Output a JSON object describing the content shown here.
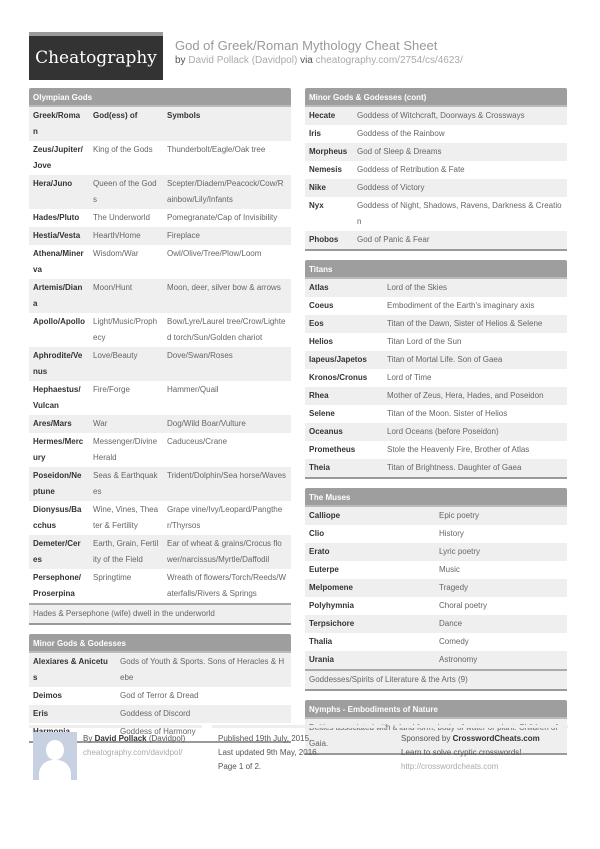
{
  "header": {
    "logo": "Cheatography",
    "title": "God of Greek/Roman Mythology Cheat Sheet",
    "by": "by",
    "author": "David Pollack (Davidpol)",
    "via": "via",
    "url": "cheatography.com/2754/cs/4623/"
  },
  "olympian": {
    "title": "Olympian Gods",
    "columns": [
      "Greek/Roman",
      "God(ess) of",
      "Symbols"
    ],
    "rows": [
      [
        "Zeus/Jupiter/Jove",
        "King of the Gods",
        "Thunderbolt/Eagle/Oak tree"
      ],
      [
        "Hera/Juno",
        "Queen of the Gods",
        "Scepter/Diadem/Peacock/Cow/Rainbow/Lily/Infants"
      ],
      [
        "Hades/Pluto",
        "The Underworld",
        "Pomegranate/Cap of Invisibility"
      ],
      [
        "Hestia/Vesta",
        "Hearth/Home",
        "Fireplace"
      ],
      [
        "Athena/Minerva",
        "Wisdom/War",
        "Owl/Olive/Tree/Plow/Loom"
      ],
      [
        "Artemis/Diana",
        "Moon/Hunt",
        "Moon, deer, silver bow & arrows"
      ],
      [
        "Apollo/Apollo",
        "Light/Music/Prophecy",
        "Bow/Lyre/Laurel tree/Crow/Lighted torch/Sun/Golden chariot"
      ],
      [
        "Aphrodite/Venus",
        "Love/Beauty",
        "Dove/Swan/Roses"
      ],
      [
        "Hephaestus/Vulcan",
        "Fire/Forge",
        "Hammer/Quail"
      ],
      [
        "Ares/Mars",
        "War",
        "Dog/Wild Boar/Vulture"
      ],
      [
        "Hermes/Mercury",
        "Messenger/Divine Herald",
        "Caduceus/Crane"
      ],
      [
        "Poseidon/Neptune",
        "Seas & Earthquakes",
        "Trident/Dolphin/Sea horse/Waves"
      ],
      [
        "Dionysus/Bacchus",
        "Wine, Vines, Theater & Fertility",
        "Grape vine/Ivy/Leopard/Pangther/Thyrsos"
      ],
      [
        "Demeter/Ceres",
        "Earth, Grain, Fertility of the Field",
        "Ear of wheat & grains/Crocus flower/narcissus/Myrtle/Daffodil"
      ],
      [
        "Persephone/Proserpina",
        "Springtime",
        "Wreath of flowers/Torch/Reeds/Waterfalls/Rivers & Springs"
      ]
    ],
    "note": "Hades & Persephone (wife) dwell in the underworld"
  },
  "minor": {
    "title": "Minor Gods & Godesses",
    "rows": [
      [
        "Alexiares & Anicetus",
        "Gods of Youth & Sports. Sons of Heracles & Hebe"
      ],
      [
        "Deimos",
        "God of Terror & Dread"
      ],
      [
        "Eris",
        "Goddess of Discord"
      ],
      [
        "Harmonia",
        "Goddess of Harmony"
      ]
    ]
  },
  "minor_cont": {
    "title": "Minor Gods & Godesses (cont)",
    "rows": [
      [
        "Hecate",
        "Goddess of Witchcraft, Doorways & Crossways"
      ],
      [
        "Iris",
        "Goddess of the Rainbow"
      ],
      [
        "Morpheus",
        "God of Sleep & Dreams"
      ],
      [
        "Nemesis",
        "Goddess of Retribution & Fate"
      ],
      [
        "Nike",
        "Goddess of Victory"
      ],
      [
        "Nyx",
        "Goddess of Night, Shadows, Ravens, Darkness & Creation"
      ],
      [
        "Phobos",
        "God of Panic & Fear"
      ]
    ]
  },
  "titans": {
    "title": "Titans",
    "rows": [
      [
        "Atlas",
        "Lord of the Skies"
      ],
      [
        "Coeus",
        "Embodiment of the Earth's imaginary axis"
      ],
      [
        "Eos",
        "Titan of the Dawn, Sister of Helios & Selene"
      ],
      [
        "Helios",
        "Titan Lord of the Sun"
      ],
      [
        "Iapeus/Japetos",
        "Titan of Mortal Life. Son of Gaea"
      ],
      [
        "Kronos/Cronus",
        "Lord of Time"
      ],
      [
        "Rhea",
        "Mother of Zeus, Hera, Hades, and Poseidon"
      ],
      [
        "Selene",
        "Titan of the Moon. Sister of Helios"
      ],
      [
        "Oceanus",
        "Lord Oceans (before Poseidon)"
      ],
      [
        "Prometheus",
        "Stole the Heavenly Fire, Brother of Atlas"
      ],
      [
        "Theia",
        "Titan of Brightness. Daughter of Gaea"
      ]
    ]
  },
  "muses": {
    "title": "The Muses",
    "rows": [
      [
        "Calliope",
        "Epic poetry"
      ],
      [
        "Clio",
        "History"
      ],
      [
        "Erato",
        "Lyric poetry"
      ],
      [
        "Euterpe",
        "Music"
      ],
      [
        "Melpomene",
        "Tragedy"
      ],
      [
        "Polyhymnia",
        "Choral poetry"
      ],
      [
        "Terpsichore",
        "Dance"
      ],
      [
        "Thalia",
        "Comedy"
      ],
      [
        "Urania",
        "Astronomy"
      ]
    ],
    "note": "Goddesses/Spirits of Literature & the Arts (9)"
  },
  "nymphs": {
    "title": "Nymphs - Embodiments of Nature",
    "text": "Deities associated with a land-form, body of water or plant. Children of Gaia."
  },
  "footer": {
    "by": "By",
    "author_name": "David Pollack",
    "author_handle": "(Davidpol)",
    "author_url": "cheatography.com/davidpol/",
    "published": "Published 19th July, 2015.",
    "updated": "Last updated 9th May, 2016.",
    "page": "Page 1 of 2.",
    "sponsored": "Sponsored by",
    "sponsor": "CrosswordCheats.com",
    "sponsor_tag": "Learn to solve cryptic crosswords!",
    "sponsor_url": "http://crosswordcheats.com"
  }
}
